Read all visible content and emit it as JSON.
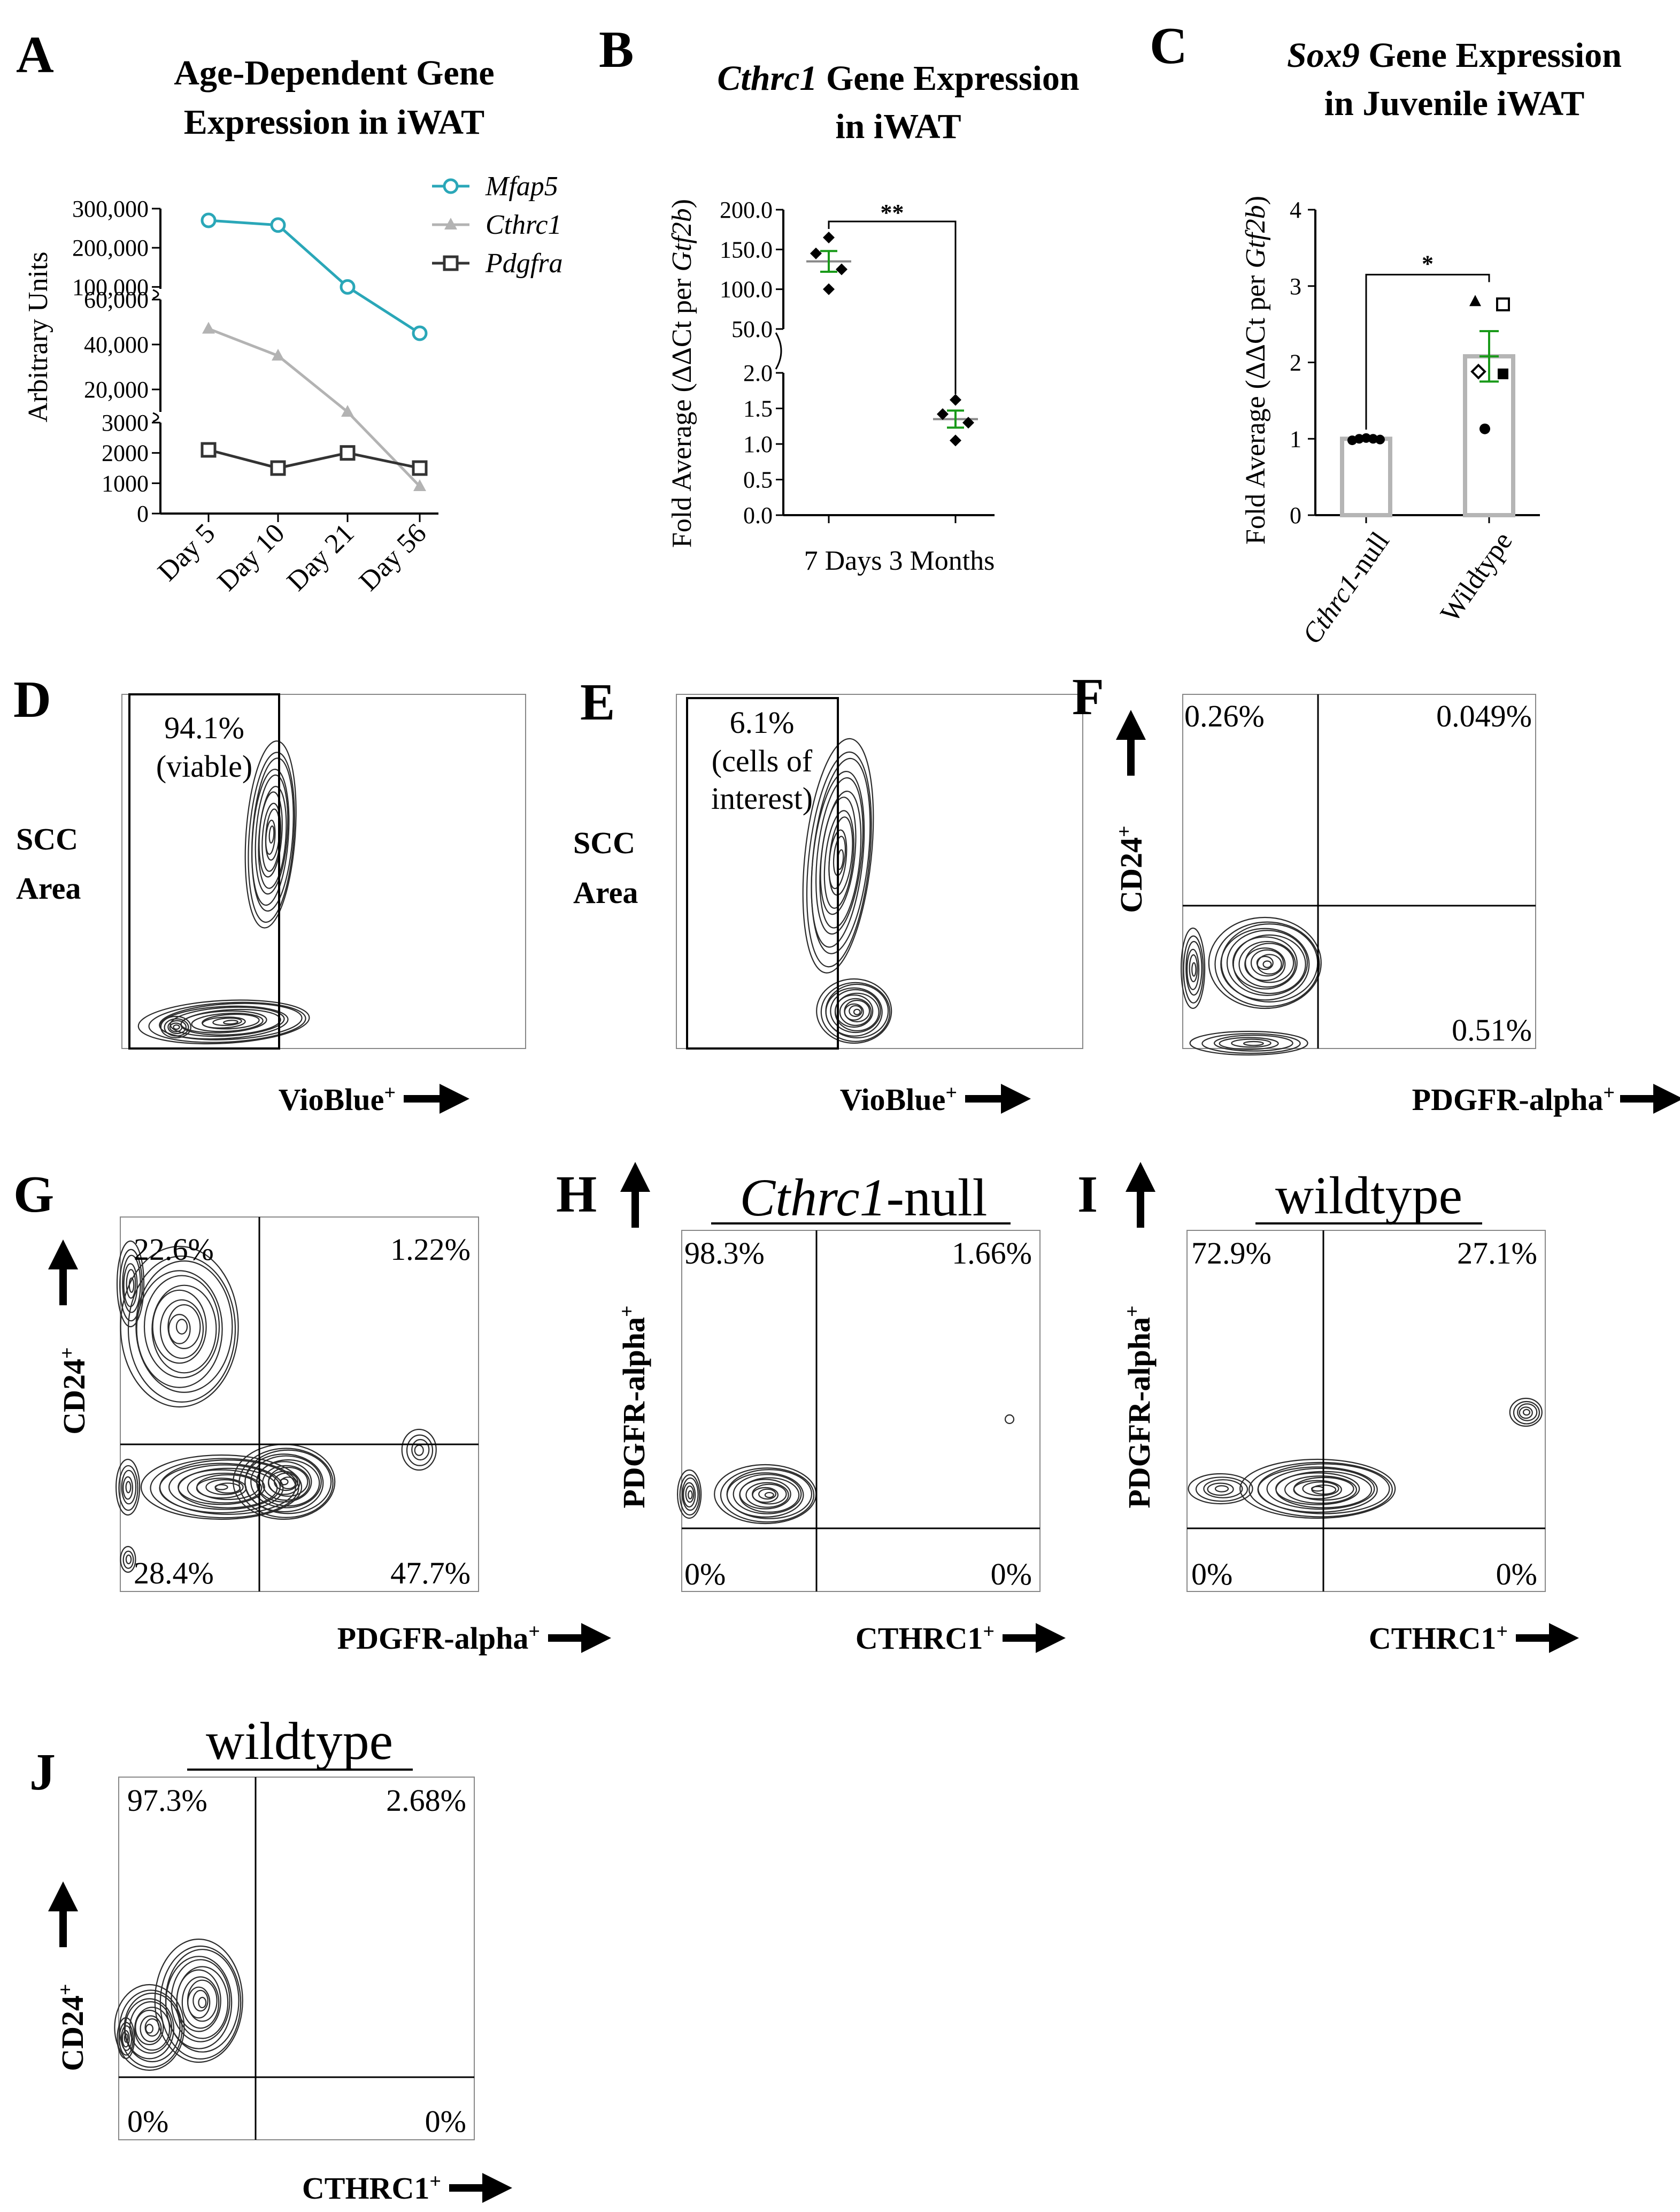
{
  "panels": {
    "A": {
      "letter": "A"
    },
    "B": {
      "letter": "B"
    },
    "C": {
      "letter": "C"
    },
    "D": {
      "letter": "D"
    },
    "E": {
      "letter": "E"
    },
    "F": {
      "letter": "F"
    },
    "G": {
      "letter": "G"
    },
    "H": {
      "letter": "H"
    },
    "I": {
      "letter": "I"
    },
    "J": {
      "letter": "J"
    }
  },
  "chart_data": [
    {
      "panel": "A",
      "type": "line",
      "title": "Age-Dependent Gene Expression in iWAT",
      "title_lines": [
        "Age-Dependent Gene",
        "Expression in iWAT"
      ],
      "ylabel": "Arbitrary Units",
      "categories": [
        "Day 5",
        "Day 10",
        "Day 21",
        "Day 56"
      ],
      "y_axis_segments": [
        {
          "range": [
            0,
            3000
          ],
          "ticks": [
            "0",
            "1000",
            "2000",
            "3000"
          ]
        },
        {
          "range": [
            10000,
            60000
          ],
          "ticks": [
            "20,000",
            "40,000",
            "60,000"
          ]
        },
        {
          "range": [
            95000,
            300000
          ],
          "ticks": [
            "100,000",
            "200,000",
            "300,000"
          ]
        }
      ],
      "series": [
        {
          "name": "Mfap5",
          "color": "#2aa7b8",
          "marker": "circle",
          "values": [
            270000,
            258000,
            100000,
            45000
          ]
        },
        {
          "name": "Cthrc1",
          "color": "#b3b3b3",
          "marker": "triangle",
          "values": [
            47000,
            35000,
            10000,
            900
          ]
        },
        {
          "name": "Pdgfra",
          "color": "#333333",
          "marker": "square",
          "values": [
            2100,
            1500,
            2000,
            1500
          ]
        }
      ]
    },
    {
      "panel": "B",
      "type": "scatter",
      "title": "Cthrc1 Gene Expression in iWAT",
      "title_italic": "Cthrc1",
      "title_rest": " Gene Expression",
      "title_line2": "in iWAT",
      "ylabel_pre": "Fold Average (ΔΔCt per ",
      "ylabel_gene": "Gtf2b",
      "ylabel_post": ")",
      "categories": [
        "7 Days",
        "3 Months"
      ],
      "category_line": "7 Days 3 Months",
      "y_axis_segments": [
        {
          "range": [
            0,
            2
          ],
          "ticks": [
            "0.0",
            "0.5",
            "1.0",
            "1.5",
            "2.0"
          ]
        },
        {
          "range": [
            50,
            200
          ],
          "ticks": [
            "50.0",
            "100.0",
            "150.0",
            "200.0"
          ]
        }
      ],
      "groups": [
        {
          "name": "7 Days",
          "points": [
            165,
            145,
            125,
            100
          ],
          "mean": 135,
          "sem": 13
        },
        {
          "name": "3 Months",
          "points": [
            1.62,
            1.42,
            1.3,
            1.05
          ],
          "mean": 1.35,
          "sem": 0.12
        }
      ],
      "significance": "**",
      "mean_color": "#1a9a1a"
    },
    {
      "panel": "C",
      "type": "bar",
      "title": "Sox9 Gene Expression in Juvenile iWAT",
      "title_italic": "Sox9",
      "title_rest": " Gene Expression",
      "title_line2": "in Juvenile iWAT",
      "ylabel_pre": "Fold Average (ΔΔCt per ",
      "ylabel_gene": "Gtf2b",
      "ylabel_post": ")",
      "categories": [
        "Cthrc1-null",
        "Wildtype"
      ],
      "cat1_italic": "Cthrc1",
      "cat1_rest": "-null",
      "cat2": "Wildtype",
      "ylim": [
        0,
        4
      ],
      "ticks": [
        "0",
        "1",
        "2",
        "3",
        "4"
      ],
      "values": [
        1.0,
        2.08
      ],
      "sem": [
        0.02,
        0.33
      ],
      "points": [
        [
          0.98,
          1.0,
          1.01,
          1.0,
          0.99
        ],
        [
          2.8,
          2.76,
          1.88,
          1.85,
          1.13
        ]
      ],
      "significance": "*",
      "sem_color": "#1a9a1a"
    }
  ],
  "flow": {
    "D": {
      "gate_pct": "94.1%",
      "gate_note": "(viable)",
      "y_label_1": "SCC",
      "y_label_2": "Area",
      "x_label": "VioBlue",
      "x_sup": "+"
    },
    "E": {
      "gate_pct": "6.1%",
      "gate_note_1": "(cells of",
      "gate_note_2": "interest)",
      "y_label_1": "SCC",
      "y_label_2": "Area",
      "x_label": "VioBlue",
      "x_sup": "+"
    },
    "F": {
      "x_label": "PDGFR-alpha",
      "y_label": "CD24",
      "sup": "+",
      "q_ul": "0.26%",
      "q_ur": "0.049%",
      "q_lr": "0.51%"
    },
    "G": {
      "x_label": "PDGFR-alpha",
      "y_label": "CD24",
      "sup": "+",
      "q_ul": "22.6%",
      "q_ur": "1.22%",
      "q_ll": "28.4%",
      "q_lr": "47.7%"
    },
    "H": {
      "genotype_italic": "Cthrc1",
      "genotype_rest": "-null",
      "x_label": "CTHRC1",
      "y_label": "PDGFR-alpha",
      "sup": "+",
      "q_ul": "98.3%",
      "q_ur": "1.66%",
      "q_ll": "0%",
      "q_lr": "0%"
    },
    "I": {
      "genotype": "wildtype",
      "x_label": "CTHRC1",
      "y_label": "PDGFR-alpha",
      "sup": "+",
      "q_ul": "72.9%",
      "q_ur": "27.1%",
      "q_ll": "0%",
      "q_lr": "0%"
    },
    "J": {
      "genotype": "wildtype",
      "x_label": "CTHRC1",
      "y_label": "CD24",
      "sup": "+",
      "q_ul": "97.3%",
      "q_ur": "2.68%",
      "q_ll": "0%",
      "q_lr": "0%"
    }
  },
  "colors": {
    "mfap5": "#2aa7b8",
    "cthrc1": "#b3b3b3",
    "pdgfra": "#333333",
    "mean": "#1a9a1a",
    "ink": "#000000",
    "contour": "#2b2b2b"
  }
}
